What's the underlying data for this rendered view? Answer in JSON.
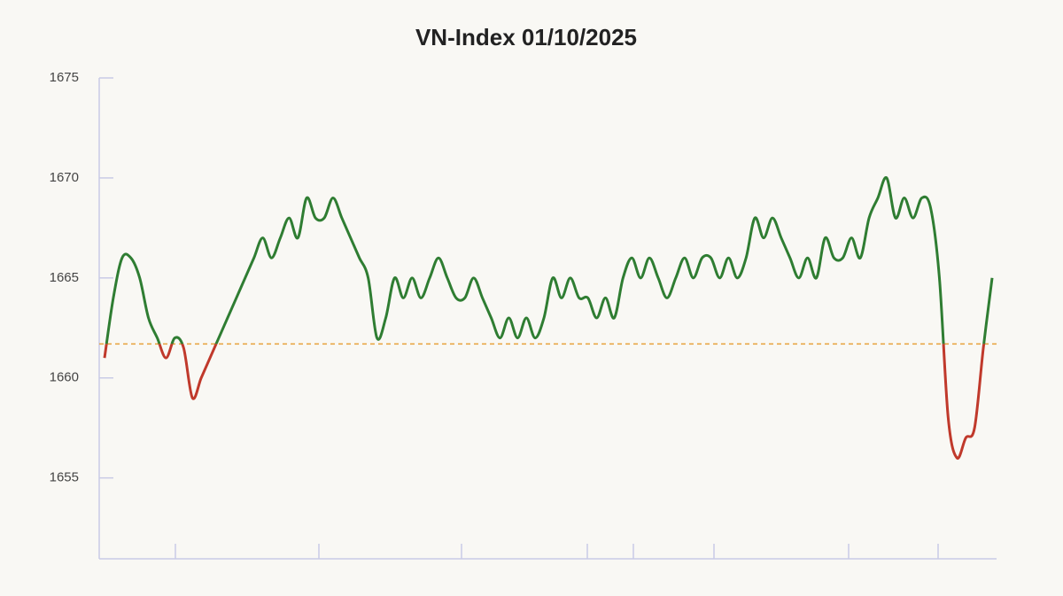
{
  "chart_data": {
    "type": "line",
    "title": "VN-Index 01/10/2025",
    "values": [
      1661,
      1664,
      1666,
      1666,
      1665,
      1663,
      1662,
      1661,
      1662,
      1661.5,
      1659,
      1660,
      1661,
      1662,
      1663,
      1664,
      1665,
      1666,
      1667,
      1666,
      1667,
      1668,
      1667,
      1669,
      1668,
      1668,
      1669,
      1668,
      1667,
      1666,
      1665,
      1662,
      1663,
      1665,
      1664,
      1665,
      1664,
      1665,
      1666,
      1665,
      1664,
      1664,
      1665,
      1664,
      1663,
      1662,
      1663,
      1662,
      1663,
      1662,
      1663,
      1665,
      1664,
      1665,
      1664,
      1664,
      1663,
      1664,
      1663,
      1665,
      1666,
      1665,
      1666,
      1665,
      1664,
      1665,
      1666,
      1665,
      1666,
      1666,
      1665,
      1666,
      1665,
      1666,
      1668,
      1667,
      1668,
      1667,
      1666,
      1665,
      1666,
      1665,
      1667,
      1666,
      1666,
      1667,
      1666,
      1668,
      1669,
      1670,
      1668,
      1669,
      1668,
      1669,
      1668.5,
      1665,
      1658,
      1656,
      1657,
      1657.5,
      1661.5,
      1665
    ],
    "reference_line": 1661.7,
    "reference_color": "#e8a13a",
    "color_above": "#2f7d32",
    "color_below": "#c0392b",
    "ylim": [
      1651,
      1675
    ],
    "yticks": [
      1655,
      1660,
      1665,
      1670,
      1675
    ]
  }
}
